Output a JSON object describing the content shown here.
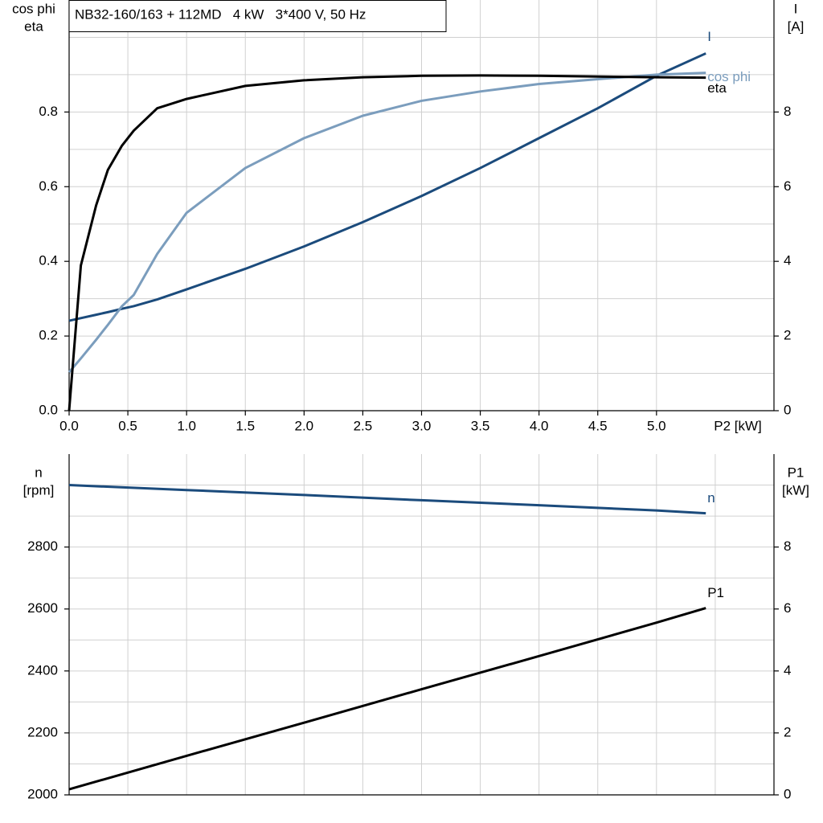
{
  "chart_data": [
    {
      "type": "line",
      "title": "NB32-160/163 + 112MD   4 kW   3*400 V, 50 Hz",
      "ylabel": [
        "cos phi",
        "eta"
      ],
      "y2label": [
        "I",
        "[A]"
      ],
      "xlabel": "P2 [kW]",
      "x": [
        0,
        0.1,
        0.23,
        0.33,
        0.45,
        0.55,
        0.75,
        1,
        1.5,
        2,
        2.5,
        3,
        3.5,
        4,
        4.5,
        5,
        5.42
      ],
      "series": [
        {
          "name": "I",
          "color": "#1b4b7c",
          "axis": "y2",
          "values": [
            2.41,
            2.48,
            2.57,
            2.64,
            2.73,
            2.8,
            2.98,
            3.25,
            3.8,
            4.4,
            5.05,
            5.75,
            6.5,
            7.3,
            8.1,
            8.97,
            9.57
          ]
        },
        {
          "name": "cos phi",
          "color": "#7b9dbd",
          "values": [
            0.103,
            0.14,
            0.19,
            0.23,
            0.28,
            0.31,
            0.42,
            0.53,
            0.65,
            0.73,
            0.79,
            0.83,
            0.855,
            0.875,
            0.888,
            0.9,
            0.905
          ]
        },
        {
          "name": "eta",
          "color": "#000000",
          "values": [
            0,
            0.389,
            0.55,
            0.645,
            0.71,
            0.75,
            0.81,
            0.835,
            0.87,
            0.885,
            0.893,
            0.897,
            0.898,
            0.897,
            0.895,
            0.893,
            0.892
          ]
        }
      ],
      "xlim": [
        0,
        6
      ],
      "xticks": [
        {
          "value": 0,
          "label": "0.0"
        },
        0.5,
        {
          "value": 1,
          "label": "1.0"
        },
        1.5,
        {
          "value": 2,
          "label": "2.0"
        },
        2.5,
        {
          "value": 3,
          "label": "3.0"
        },
        3.5,
        {
          "value": 4,
          "label": "4.0"
        },
        4.5,
        {
          "value": 5,
          "label": "5.0"
        }
      ],
      "ylim": [
        0,
        1.1
      ],
      "yticks": [
        {
          "value": 0,
          "label": "0.0"
        },
        0.2,
        0.4,
        0.6,
        0.8
      ],
      "ygrid_minor": [
        0.1,
        0.3,
        0.5,
        0.7,
        0.9,
        1.0
      ],
      "y2lim": [
        0,
        11
      ],
      "y2ticks": [
        0,
        2,
        4,
        6,
        8
      ],
      "grid": true
    },
    {
      "type": "line",
      "ylabel": [
        "n",
        "[rpm]"
      ],
      "y2label": [
        "P1",
        "[kW]"
      ],
      "x": [
        0,
        1,
        2,
        3,
        4,
        5,
        5.42
      ],
      "series": [
        {
          "name": "n",
          "color": "#1b4b7c",
          "values": [
            3000,
            2984,
            2968,
            2951,
            2935,
            2918,
            2909
          ]
        },
        {
          "name": "P1",
          "color": "#000000",
          "axis": "y2",
          "values": [
            0.18,
            1.26,
            2.33,
            3.41,
            4.48,
            5.56,
            6.03
          ]
        }
      ],
      "xlim": [
        0,
        6
      ],
      "xgrid": [
        0.5,
        1,
        1.5,
        2,
        2.5,
        3,
        3.5,
        4,
        4.5,
        5,
        5.5
      ],
      "ylim": [
        2000,
        3100
      ],
      "yticks": [
        2000,
        2200,
        2400,
        2600,
        2800
      ],
      "ygrid_minor": [
        2100,
        2300,
        2500,
        2700,
        2900,
        3000
      ],
      "y2lim": [
        0,
        11
      ],
      "y2ticks": [
        0,
        2,
        4,
        6,
        8
      ],
      "grid": true
    }
  ]
}
